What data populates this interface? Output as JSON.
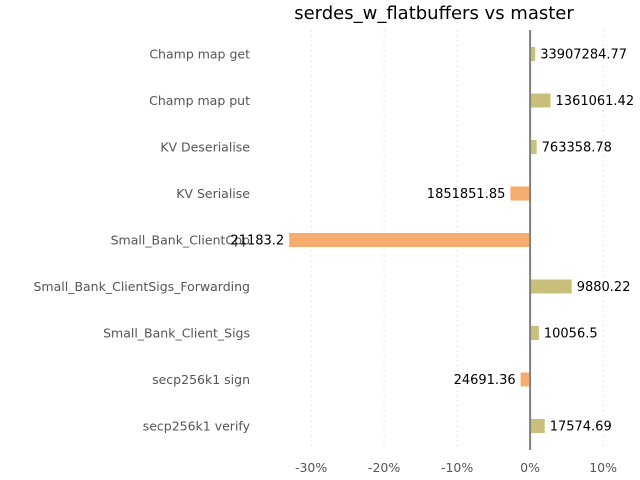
{
  "chart_data": {
    "type": "bar",
    "orientation": "horizontal",
    "title": "serdes_w_flatbuffers vs master",
    "xlabel": "",
    "ylabel": "",
    "xlim": [
      -37,
      13
    ],
    "x_ticks": [
      -30,
      -20,
      -10,
      0,
      10
    ],
    "x_tick_labels": [
      "-30%",
      "-20%",
      "-10%",
      "0%",
      "10%"
    ],
    "grid": "vertical, dotted",
    "colors": {
      "positive": "#c8c07a",
      "negative": "#f5ac6e",
      "zero_line": "#808080"
    },
    "categories": [
      "Champ map get",
      "Champ map put",
      "KV Deserialise",
      "KV Serialise",
      "Small_Bank_ClientCpp",
      "Small_Bank_ClientSigs_Forwarding",
      "Small_Bank_Client_Sigs",
      "secp256k1 sign",
      "secp256k1 verify"
    ],
    "values": [
      0.7,
      2.8,
      0.9,
      -2.7,
      -33.0,
      5.7,
      1.2,
      -1.3,
      2.0
    ],
    "data_labels": [
      "33907284.77",
      "1361061.42",
      "763358.78",
      "1851851.85",
      "21183.2",
      "9880.22",
      "10056.5",
      "24691.36",
      "17574.69"
    ]
  }
}
